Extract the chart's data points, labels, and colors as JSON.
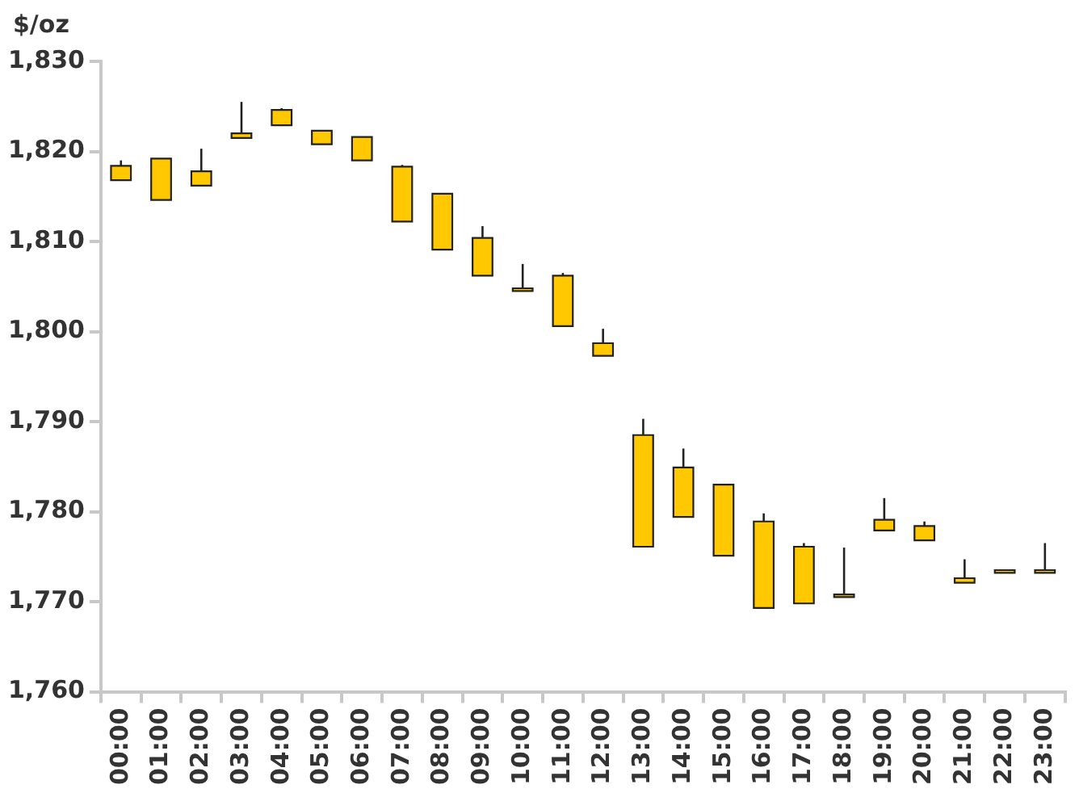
{
  "chart_data": {
    "type": "candlestick",
    "ylabel": "$/oz",
    "color": "#ffc800",
    "categories": [
      "00:00",
      "01:00",
      "02:00",
      "03:00",
      "04:00",
      "05:00",
      "06:00",
      "07:00",
      "08:00",
      "09:00",
      "10:00",
      "11:00",
      "12:00",
      "13:00",
      "14:00",
      "15:00",
      "16:00",
      "17:00",
      "18:00",
      "19:00",
      "20:00",
      "21:00",
      "22:00",
      "23:00"
    ],
    "ohlc": [
      [
        1818.4,
        1819.0,
        1816.8,
        1816.8
      ],
      [
        1819.2,
        1819.2,
        1814.6,
        1814.6
      ],
      [
        1817.8,
        1820.3,
        1816.2,
        1816.2
      ],
      [
        1822.0,
        1825.5,
        1821.5,
        1821.5
      ],
      [
        1824.6,
        1824.8,
        1822.9,
        1822.9
      ],
      [
        1822.3,
        1822.3,
        1820.8,
        1820.8
      ],
      [
        1821.6,
        1821.6,
        1819.0,
        1819.0
      ],
      [
        1818.3,
        1818.5,
        1812.2,
        1812.2
      ],
      [
        1815.3,
        1815.3,
        1809.1,
        1809.1
      ],
      [
        1810.4,
        1811.7,
        1806.2,
        1806.2
      ],
      [
        1804.8,
        1807.5,
        1804.5,
        1804.5
      ],
      [
        1806.2,
        1806.5,
        1800.6,
        1800.6
      ],
      [
        1798.7,
        1800.3,
        1797.3,
        1797.3
      ],
      [
        1788.5,
        1790.3,
        1776.1,
        1776.1
      ],
      [
        1784.9,
        1787.0,
        1779.4,
        1779.4
      ],
      [
        1783.0,
        1783.0,
        1775.1,
        1775.1
      ],
      [
        1778.9,
        1779.8,
        1769.3,
        1769.3
      ],
      [
        1776.1,
        1776.5,
        1769.8,
        1769.8
      ],
      [
        1770.8,
        1776.0,
        1770.5,
        1770.5
      ],
      [
        1779.1,
        1781.5,
        1777.9,
        1777.9
      ],
      [
        1778.4,
        1778.9,
        1776.8,
        1776.8
      ],
      [
        1772.6,
        1774.7,
        1772.1,
        1772.1
      ],
      [
        1773.5,
        1773.5,
        1773.2,
        1773.2
      ],
      [
        1773.5,
        1776.5,
        1773.2,
        1773.2
      ]
    ],
    "ylim": [
      1760,
      1830
    ],
    "yticks": [
      {
        "value": 1760,
        "label": "1,760"
      },
      {
        "value": 1770,
        "label": "1,770"
      },
      {
        "value": 1780,
        "label": "1,780"
      },
      {
        "value": 1790,
        "label": "1,790"
      },
      {
        "value": 1800,
        "label": "1,800"
      },
      {
        "value": 1810,
        "label": "1,810"
      },
      {
        "value": 1820,
        "label": "1,820"
      },
      {
        "value": 1830,
        "label": "1,830"
      }
    ]
  }
}
